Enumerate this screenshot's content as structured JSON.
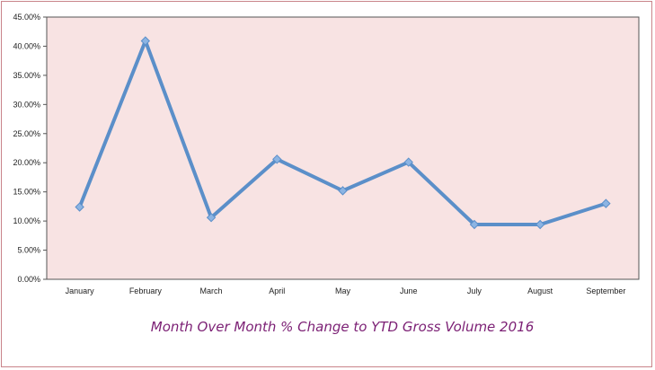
{
  "chart_data": {
    "type": "line",
    "title": "Month Over Month % Change to YTD Gross Volume 2016",
    "xlabel": "",
    "ylabel": "",
    "categories": [
      "January",
      "February",
      "March",
      "April",
      "May",
      "June",
      "July",
      "August",
      "September"
    ],
    "series": [
      {
        "values": [
          12.4,
          40.9,
          10.6,
          20.6,
          15.2,
          20.1,
          9.4,
          9.4,
          13.0
        ]
      }
    ],
    "y_ticks": [
      "0.00%",
      "5.00%",
      "10.00%",
      "15.00%",
      "20.00%",
      "25.00%",
      "30.00%",
      "35.00%",
      "40.00%",
      "45.00%"
    ],
    "ylim": [
      0,
      45
    ],
    "grid": false,
    "legend": "none",
    "colors": {
      "plot_background": "#f8e3e3",
      "line": "#5b8fc9",
      "marker": "#8cb4e3",
      "title": "#7b1f74",
      "frame": "#c9848a"
    }
  }
}
